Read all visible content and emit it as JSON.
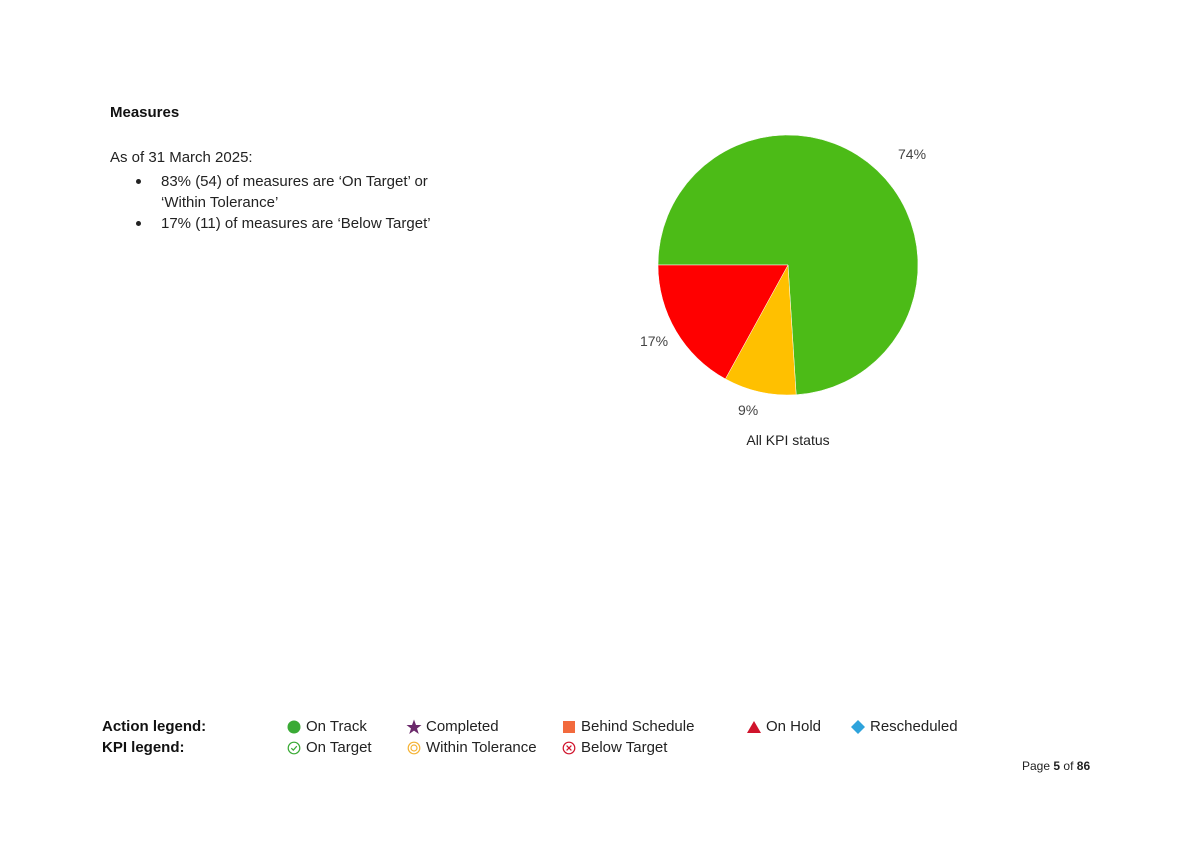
{
  "section": {
    "heading": "Measures",
    "as_of": "As of 31 March 2025:",
    "bullets": [
      "83% (54) of measures are ‘On Target’ or ‘Within Tolerance’",
      "17% (11) of measures are ‘Below Target’"
    ]
  },
  "chart_data": {
    "type": "pie",
    "title": "All KPI status",
    "slices": [
      {
        "label": "74%",
        "value": 74,
        "color": "#4cbb17"
      },
      {
        "label": "9%",
        "value": 9,
        "color": "#ffc000"
      },
      {
        "label": "17%",
        "value": 17,
        "color": "#ff0000"
      }
    ]
  },
  "legend": {
    "action_label": "Action legend:",
    "kpi_label": "KPI legend:",
    "action_items": [
      {
        "label": "On Track",
        "icon": "green-circle-icon",
        "color": "#3aaa35"
      },
      {
        "label": "Completed",
        "icon": "purple-star-icon",
        "color": "#6b2a6b"
      },
      {
        "label": "Behind Schedule",
        "icon": "orange-square-icon",
        "color": "#f26a3d"
      },
      {
        "label": "On Hold",
        "icon": "red-triangle-icon",
        "color": "#d0142c"
      },
      {
        "label": "Rescheduled",
        "icon": "blue-diamond-icon",
        "color": "#2ea3dc"
      }
    ],
    "kpi_items": [
      {
        "label": "On Target",
        "icon": "check-circle-icon",
        "color": "#3aaa35"
      },
      {
        "label": "Within Tolerance",
        "icon": "concentric-circle-icon",
        "color": "#f5b335"
      },
      {
        "label": "Below Target",
        "icon": "x-circle-icon",
        "color": "#d0142c"
      }
    ]
  },
  "footer": {
    "page_prefix": "Page",
    "page_current": "5",
    "page_of": "of",
    "page_total": "86"
  }
}
